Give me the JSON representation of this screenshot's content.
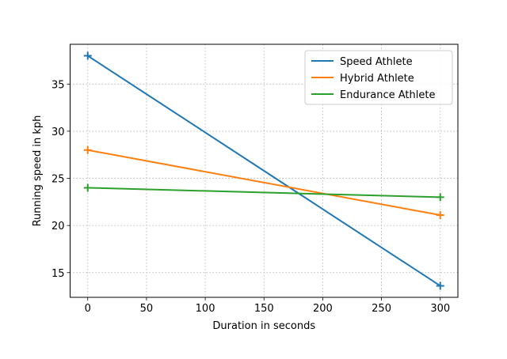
{
  "chart_data": {
    "type": "line",
    "title": "",
    "xlabel": "Duration in seconds",
    "ylabel": "Running speed in kph",
    "xlim": [
      -15,
      315
    ],
    "ylim": [
      12.38,
      39.22
    ],
    "xticks": [
      0,
      50,
      100,
      150,
      200,
      250,
      300
    ],
    "yticks": [
      15,
      20,
      25,
      30,
      35
    ],
    "grid": true,
    "legend_position": "top-right",
    "marker": "+",
    "series": [
      {
        "name": "Speed Athlete",
        "color": "#1f77b4",
        "x": [
          0,
          300
        ],
        "y": [
          38,
          13.6
        ]
      },
      {
        "name": "Hybrid Athlete",
        "color": "#ff7f0e",
        "x": [
          0,
          300
        ],
        "y": [
          28,
          21.1
        ]
      },
      {
        "name": "Endurance Athlete",
        "color": "#2ca02c",
        "x": [
          0,
          300
        ],
        "y": [
          24,
          23.0
        ]
      }
    ]
  }
}
